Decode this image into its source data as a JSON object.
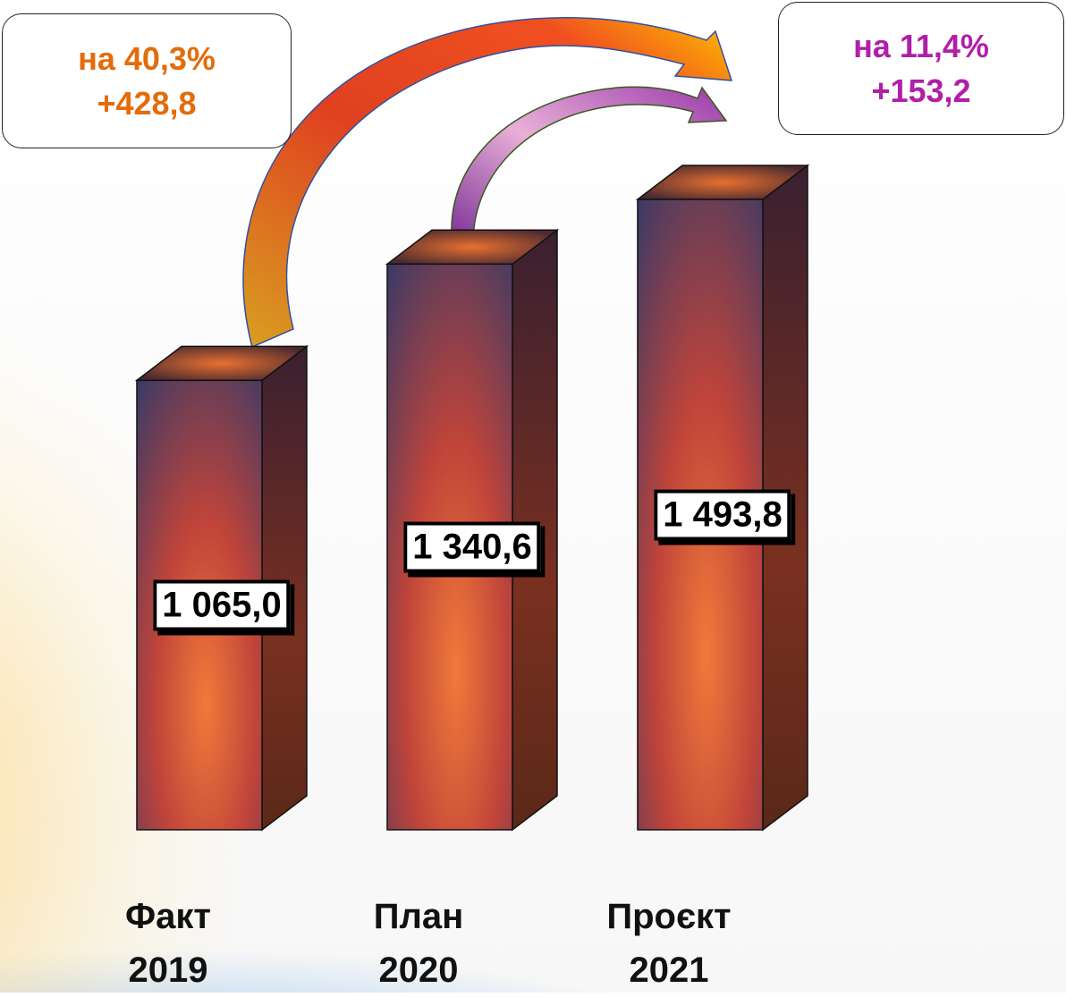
{
  "chart_data": {
    "type": "bar3d",
    "categories": [
      "Факт\n2019",
      "План\n2020",
      "Проєкт\n2021"
    ],
    "values": [
      1065.0,
      1340.6,
      1493.8
    ],
    "value_labels": [
      "1 065,0",
      "1 340,6",
      "1 493,8"
    ],
    "annotations": [
      {
        "lines": [
          "на 40,3%",
          "+428,8"
        ],
        "color": "#e36c0a"
      },
      {
        "lines": [
          "на 11,4%",
          "+153,2"
        ],
        "color": "#b01fa8"
      }
    ]
  }
}
